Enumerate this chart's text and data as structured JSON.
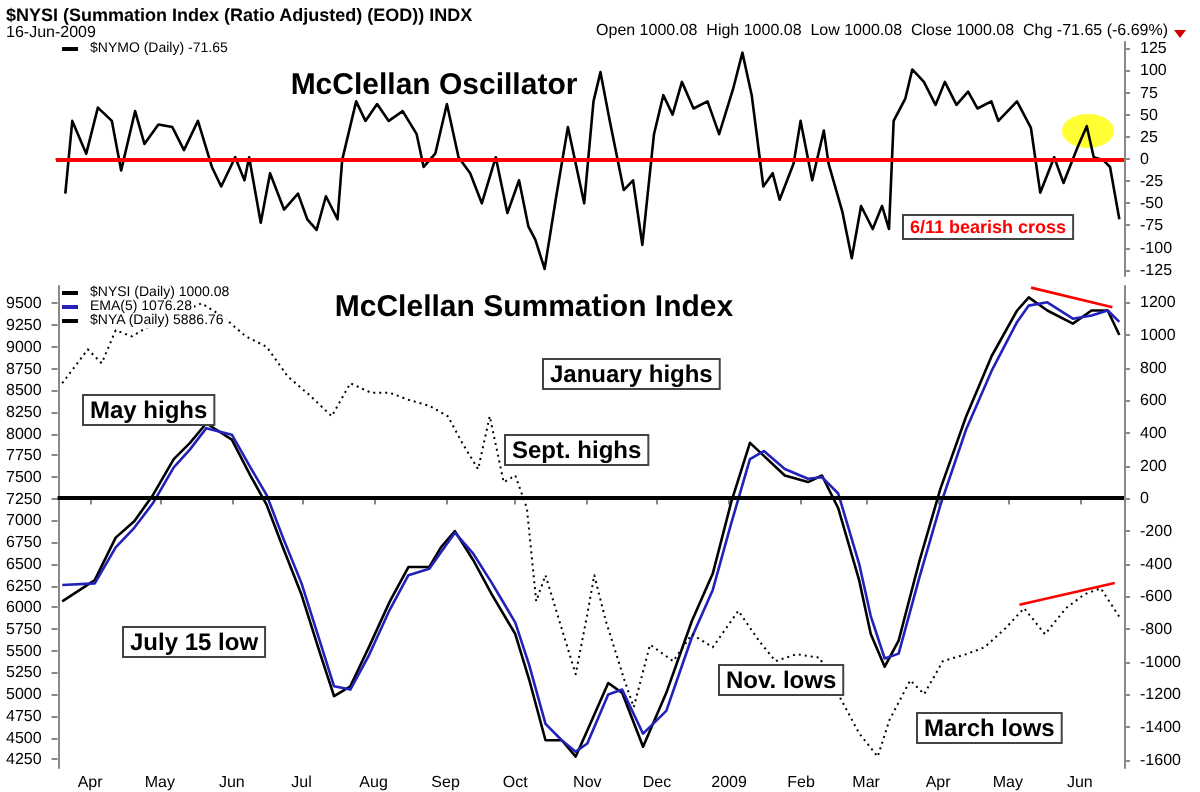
{
  "chart_data": [
    {
      "type": "line",
      "title": "McClellan Oscillator",
      "annotations": [
        "$NYSI (Summation Index (Ratio Adjusted) (EOD)) INDX",
        "16-Jun-2009",
        "Open 1000.08  High 1000.08  Low 1000.08  Close 1000.08  Chg -71.65 (-6.69%)",
        "6/11 bearish cross"
      ],
      "x": [
        "2008-03-22",
        "2008-03-25",
        "2008-03-31",
        "2008-04-05",
        "2008-04-11",
        "2008-04-15",
        "2008-04-21",
        "2008-04-25",
        "2008-05-01",
        "2008-05-07",
        "2008-05-12",
        "2008-05-18",
        "2008-05-24",
        "2008-05-28",
        "2008-06-03",
        "2008-06-07",
        "2008-06-09",
        "2008-06-14",
        "2008-06-18",
        "2008-06-24",
        "2008-06-30",
        "2008-07-04",
        "2008-07-08",
        "2008-07-12",
        "2008-07-17",
        "2008-07-19",
        "2008-07-25",
        "2008-07-29",
        "2008-08-03",
        "2008-08-08",
        "2008-08-14",
        "2008-08-20",
        "2008-08-23",
        "2008-08-28",
        "2008-09-02",
        "2008-09-07",
        "2008-09-12",
        "2008-09-17",
        "2008-09-23",
        "2008-09-28",
        "2008-10-03",
        "2008-10-07",
        "2008-10-10",
        "2008-10-14",
        "2008-10-19",
        "2008-10-24",
        "2008-10-31",
        "2008-11-04",
        "2008-11-07",
        "2008-11-11",
        "2008-11-17",
        "2008-11-21",
        "2008-11-25",
        "2008-11-30",
        "2008-12-04",
        "2008-12-08",
        "2008-12-12",
        "2008-12-17",
        "2008-12-23",
        "2008-12-28",
        "2009-01-03",
        "2009-01-07",
        "2009-01-11",
        "2009-01-16",
        "2009-01-20",
        "2009-01-23",
        "2009-01-29",
        "2009-02-01",
        "2009-02-06",
        "2009-02-11",
        "2009-02-13",
        "2009-02-19",
        "2009-02-23",
        "2009-02-27",
        "2009-03-04",
        "2009-03-08",
        "2009-03-11",
        "2009-03-13",
        "2009-03-18",
        "2009-03-21",
        "2009-03-26",
        "2009-03-31",
        "2009-04-04",
        "2009-04-09",
        "2009-04-14",
        "2009-04-18",
        "2009-04-24",
        "2009-04-27",
        "2009-05-01",
        "2009-05-05",
        "2009-05-11",
        "2009-05-15",
        "2009-05-21",
        "2009-05-25",
        "2009-05-31",
        "2009-06-04",
        "2009-06-07",
        "2009-06-11",
        "2009-06-14",
        "2009-06-18"
      ],
      "series": [
        {
          "name": "$NYMO (Daily) -71.65",
          "color": "#000000",
          "values": [
            -39,
            43,
            6,
            58,
            43,
            -13,
            54,
            17,
            39,
            36,
            10,
            43,
            -9,
            -31,
            2,
            -24,
            2,
            -72,
            -16,
            -57,
            -39,
            -68,
            -80,
            -42,
            -68,
            -1,
            65,
            43,
            62,
            43,
            54,
            28,
            -9,
            6,
            62,
            2,
            -16,
            -50,
            2,
            -61,
            -24,
            -76,
            -91,
            -124,
            -42,
            36,
            -50,
            65,
            98,
            43,
            -35,
            -24,
            -97,
            28,
            72,
            50,
            87,
            57,
            65,
            28,
            79,
            120,
            72,
            -31,
            -16,
            -46,
            -5,
            43,
            -24,
            32,
            -5,
            -60,
            -112,
            -53,
            -79,
            -53,
            -79,
            43,
            68,
            101,
            87,
            61,
            87,
            61,
            76,
            57,
            65,
            43,
            54,
            65,
            35,
            -38,
            2,
            -27,
            13,
            37,
            2,
            -1,
            -9,
            -68
          ]
        }
      ],
      "xlim": [
        "2008-03-18",
        "2009-06-20"
      ],
      "ylim": [
        -132,
        132
      ],
      "yticks": [
        -125,
        -100,
        -75,
        -50,
        -25,
        0,
        25,
        50,
        75,
        100,
        125
      ],
      "ref_lines": [
        {
          "axis": "y",
          "value": 0,
          "color": "#ff0000"
        }
      ],
      "legend": "top left",
      "tick_labels": "y"
    },
    {
      "type": "line",
      "title": "McClellan Summation Index",
      "annotations": [
        "May highs",
        "Sept. highs",
        "July 15 low",
        "January highs",
        "Nov. lows",
        "March lows"
      ],
      "x": [
        "2008-03-20",
        "2008-04-03",
        "2008-04-12",
        "2008-04-20",
        "2008-04-28",
        "2008-05-07",
        "2008-05-14",
        "2008-05-21",
        "2008-06-01",
        "2008-06-09",
        "2008-06-16",
        "2008-06-23",
        "2008-07-01",
        "2008-07-09",
        "2008-07-15",
        "2008-07-22",
        "2008-07-30",
        "2008-08-08",
        "2008-08-16",
        "2008-08-25",
        "2008-08-30",
        "2008-09-05",
        "2008-09-13",
        "2008-09-21",
        "2008-10-01",
        "2008-10-07",
        "2008-10-14",
        "2008-10-21",
        "2008-10-27",
        "2008-11-01",
        "2008-11-10",
        "2008-11-16",
        "2008-11-25",
        "2008-12-05",
        "2008-12-16",
        "2008-12-25",
        "2009-01-02",
        "2009-01-10",
        "2009-01-16",
        "2009-01-25",
        "2009-02-04",
        "2009-02-10",
        "2009-02-17",
        "2009-02-26",
        "2009-03-03",
        "2009-03-09",
        "2009-03-15",
        "2009-03-24",
        "2009-04-02",
        "2009-04-13",
        "2009-04-24",
        "2009-05-05",
        "2009-05-10",
        "2009-05-18",
        "2009-05-29",
        "2009-06-06",
        "2009-06-13",
        "2009-06-18"
      ],
      "series": [
        {
          "name": "$NYSI (Daily) 1000.08",
          "color": "#000000",
          "axis": "y2",
          "values": [
            -630,
            -500,
            -240,
            -140,
            20,
            240,
            340,
            460,
            360,
            140,
            -40,
            -300,
            -590,
            -950,
            -1210,
            -1150,
            -910,
            -630,
            -420,
            -420,
            -300,
            -200,
            -380,
            -590,
            -830,
            -1110,
            -1480,
            -1480,
            -1580,
            -1420,
            -1130,
            -1190,
            -1520,
            -1190,
            -750,
            -460,
            -20,
            340,
            260,
            140,
            100,
            140,
            -60,
            -500,
            -830,
            -1030,
            -870,
            -380,
            60,
            500,
            870,
            1150,
            1230,
            1150,
            1070,
            1150,
            1150,
            1000
          ]
        },
        {
          "name": "EMA(5) 1076.28",
          "color": "#2222bb",
          "axis": "y2",
          "values": [
            -530,
            -520,
            -300,
            -180,
            -30,
            190,
            300,
            430,
            390,
            190,
            20,
            -240,
            -520,
            -880,
            -1150,
            -1170,
            -960,
            -680,
            -470,
            -430,
            -330,
            -210,
            -340,
            -520,
            -760,
            -1020,
            -1380,
            -1480,
            -1550,
            -1500,
            -1200,
            -1170,
            -1440,
            -1300,
            -850,
            -560,
            -150,
            240,
            290,
            180,
            120,
            130,
            30,
            -400,
            -720,
            -980,
            -950,
            -480,
            -40,
            420,
            780,
            1080,
            1180,
            1200,
            1100,
            1120,
            1150,
            1080
          ]
        },
        {
          "name": "$NYA (Daily) 5886.76",
          "color": "#000000",
          "line_style": "dotted",
          "x": [
            "2008-03-20",
            "2008-03-31",
            "2008-04-06",
            "2008-04-12",
            "2008-04-19",
            "2008-04-26",
            "2008-05-05",
            "2008-05-12",
            "2008-05-19",
            "2008-05-28",
            "2008-06-07",
            "2008-06-16",
            "2008-06-25",
            "2008-07-05",
            "2008-07-14",
            "2008-07-22",
            "2008-07-31",
            "2008-08-08",
            "2008-08-16",
            "2008-08-25",
            "2008-09-02",
            "2008-09-08",
            "2008-09-15",
            "2008-09-20",
            "2008-09-26",
            "2008-10-01",
            "2008-10-06",
            "2008-10-10",
            "2008-10-14",
            "2008-10-20",
            "2008-10-27",
            "2008-11-01",
            "2008-11-04",
            "2008-11-09",
            "2008-11-17",
            "2008-11-21",
            "2008-11-28",
            "2008-12-08",
            "2008-12-16",
            "2008-12-25",
            "2009-01-05",
            "2009-01-14",
            "2009-01-21",
            "2009-01-30",
            "2009-02-09",
            "2009-02-17",
            "2009-02-26",
            "2009-03-06",
            "2009-03-11",
            "2009-03-20",
            "2009-03-26",
            "2009-04-03",
            "2009-04-13",
            "2009-04-21",
            "2009-04-30",
            "2009-05-08",
            "2009-05-17",
            "2009-05-26",
            "2009-06-03",
            "2009-06-10",
            "2009-06-18"
          ],
          "values": [
            8580,
            8970,
            8810,
            9190,
            9120,
            9230,
            9420,
            9420,
            9500,
            9350,
            9120,
            9000,
            8660,
            8430,
            8200,
            8580,
            8470,
            8470,
            8390,
            8320,
            8200,
            7900,
            7590,
            8200,
            7440,
            7520,
            7140,
            6070,
            6370,
            5840,
            5230,
            5920,
            6370,
            5840,
            5160,
            4850,
            5570,
            5380,
            5690,
            5540,
            5960,
            5610,
            5380,
            5460,
            5420,
            5000,
            4550,
            4280,
            4700,
            5160,
            5000,
            5380,
            5460,
            5540,
            5760,
            5990,
            5690,
            5990,
            6150,
            6220,
            5890
          ]
        },
        {
          "color": "#ff0000",
          "axis": "y2",
          "x": [
            "2009-05-11",
            "2009-06-15"
          ],
          "values": [
            1290,
            1170
          ]
        },
        {
          "color": "#ff0000",
          "x": [
            "2009-05-06",
            "2009-06-16"
          ],
          "values": [
            6030,
            6280
          ]
        }
      ],
      "xlim": [
        "2008-03-18",
        "2009-06-20"
      ],
      "xticks": [
        {
          "value": "2008-04-01",
          "label": "Apr"
        },
        {
          "value": "2008-05-01",
          "label": "May"
        },
        {
          "value": "2008-06-01",
          "label": "Jun"
        },
        {
          "value": "2008-07-01",
          "label": "Jul"
        },
        {
          "value": "2008-08-01",
          "label": "Aug"
        },
        {
          "value": "2008-09-01",
          "label": "Sep"
        },
        {
          "value": "2008-10-01",
          "label": "Oct"
        },
        {
          "value": "2008-11-01",
          "label": "Nov"
        },
        {
          "value": "2008-12-01",
          "label": "Dec"
        },
        {
          "value": "2009-01-01",
          "label": "2009"
        },
        {
          "value": "2009-02-01",
          "label": "Feb"
        },
        {
          "value": "2009-03-01",
          "label": "Mar"
        },
        {
          "value": "2009-04-01",
          "label": "Apr"
        },
        {
          "value": "2009-05-01",
          "label": "May"
        },
        {
          "value": "2009-06-01",
          "label": "Jun"
        }
      ],
      "ylim": [
        4150,
        9700
      ],
      "yticks": [
        4250,
        4500,
        4750,
        5000,
        5250,
        5500,
        5750,
        6000,
        6250,
        6500,
        6750,
        7000,
        7250,
        7500,
        7750,
        8000,
        8250,
        8500,
        8750,
        9000,
        9250,
        9500
      ],
      "y2lim": [
        -1650,
        1300
      ],
      "y2ticks": [
        -1600,
        -1400,
        -1200,
        -1000,
        -800,
        -600,
        -400,
        -200,
        0,
        200,
        400,
        600,
        800,
        1000,
        1200
      ],
      "ref_lines": [
        {
          "axis": "y2",
          "value": 0,
          "color": "#000000"
        }
      ],
      "legend": "top left"
    }
  ]
}
